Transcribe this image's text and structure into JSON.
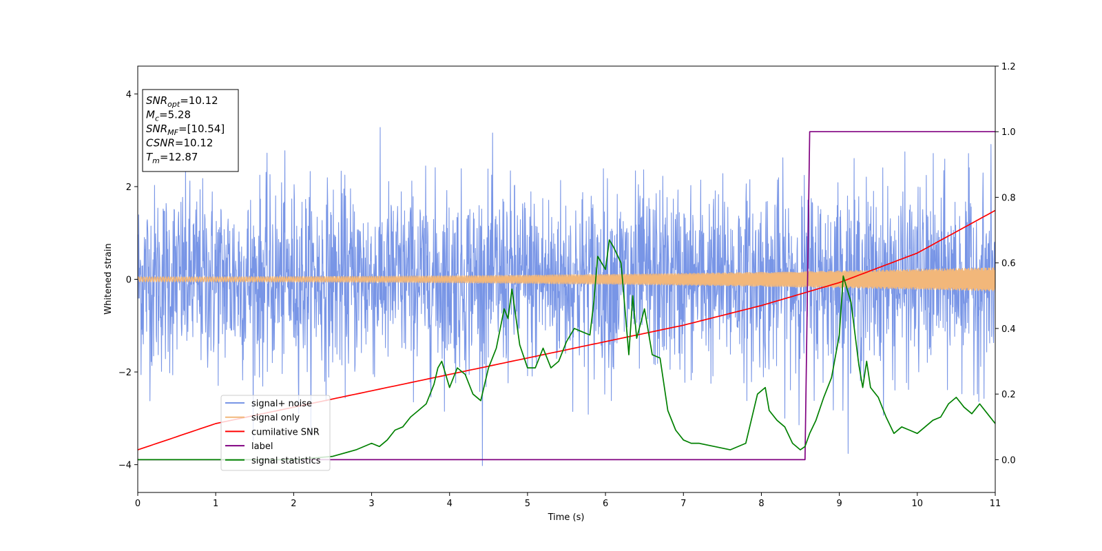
{
  "chart_data": {
    "type": "line",
    "xlabel": "Time (s)",
    "ylabel": "Whitened strain",
    "xlim": [
      0,
      11
    ],
    "ylim": [
      -4.6,
      4.6
    ],
    "y2lim": [
      -0.1,
      1.2
    ],
    "xticks": [
      "0",
      "1",
      "2",
      "3",
      "4",
      "5",
      "6",
      "7",
      "8",
      "9",
      "10",
      "11"
    ],
    "yticks": [
      "4",
      "2",
      "0",
      "−2",
      "−4"
    ],
    "y2ticks": [
      "1.2",
      "1.0",
      "0.8",
      "0.6",
      "0.4",
      "0.2",
      "0.0"
    ],
    "grid": false,
    "legend_position": "lower-left",
    "info_box": {
      "lines": [
        {
          "label": "SNR",
          "sub": "opt",
          "value": "=10.12"
        },
        {
          "label": "M",
          "sub": "c",
          "value": "=5.28"
        },
        {
          "label": "SNR",
          "sub": "MF",
          "value": "=[10.54]"
        },
        {
          "label": "CSNR",
          "sub": "",
          "value": "=10.12"
        },
        {
          "label": "T",
          "sub": "m",
          "value": "=12.87"
        }
      ]
    },
    "series": [
      {
        "name": "signal+ noise",
        "axis": "left",
        "color": "#7895e6",
        "description_kind": "noise",
        "noise_std": 1.0,
        "approx_range": [
          -4.15,
          4.15
        ]
      },
      {
        "name": "signal only",
        "axis": "left",
        "color": "#f2b77a",
        "description_kind": "chirp",
        "amplitude_start": 0.05,
        "amplitude_end": 0.25
      },
      {
        "name": "cumilative SNR",
        "axis": "right",
        "color": "#ff0000",
        "x": [
          0,
          1,
          2,
          3,
          4,
          5,
          6,
          7,
          8,
          9,
          10,
          11
        ],
        "y": [
          0.03,
          0.11,
          0.16,
          0.21,
          0.26,
          0.31,
          0.36,
          0.41,
          0.47,
          0.54,
          0.63,
          0.76
        ]
      },
      {
        "name": "label",
        "axis": "right",
        "color": "#800080",
        "x": [
          0,
          8.56,
          8.62,
          11
        ],
        "y": [
          0,
          0,
          1,
          1
        ]
      },
      {
        "name": "signal statistics",
        "axis": "right",
        "color": "#008000",
        "x": [
          0,
          1,
          2,
          2.5,
          2.8,
          3,
          3.1,
          3.2,
          3.3,
          3.4,
          3.5,
          3.6,
          3.7,
          3.8,
          3.85,
          3.9,
          4.0,
          4.1,
          4.2,
          4.3,
          4.4,
          4.5,
          4.6,
          4.7,
          4.75,
          4.8,
          4.9,
          5.0,
          5.1,
          5.2,
          5.3,
          5.4,
          5.5,
          5.6,
          5.7,
          5.8,
          5.85,
          5.9,
          6.0,
          6.05,
          6.1,
          6.2,
          6.3,
          6.35,
          6.4,
          6.5,
          6.6,
          6.7,
          6.8,
          6.9,
          7.0,
          7.1,
          7.2,
          7.4,
          7.6,
          7.8,
          7.95,
          8.05,
          8.1,
          8.2,
          8.3,
          8.4,
          8.5,
          8.56,
          8.62,
          8.7,
          8.8,
          8.9,
          9.0,
          9.05,
          9.15,
          9.25,
          9.3,
          9.35,
          9.4,
          9.5,
          9.6,
          9.7,
          9.8,
          9.9,
          10.0,
          10.1,
          10.2,
          10.3,
          10.4,
          10.5,
          10.6,
          10.7,
          10.8,
          10.9,
          11.0
        ],
        "y": [
          0.0,
          0.0,
          0.0,
          0.01,
          0.03,
          0.05,
          0.04,
          0.06,
          0.09,
          0.1,
          0.13,
          0.15,
          0.17,
          0.23,
          0.28,
          0.3,
          0.22,
          0.28,
          0.26,
          0.2,
          0.18,
          0.28,
          0.34,
          0.46,
          0.43,
          0.52,
          0.35,
          0.28,
          0.28,
          0.34,
          0.28,
          0.3,
          0.36,
          0.4,
          0.39,
          0.38,
          0.48,
          0.62,
          0.58,
          0.67,
          0.65,
          0.6,
          0.32,
          0.5,
          0.37,
          0.46,
          0.32,
          0.31,
          0.15,
          0.09,
          0.06,
          0.05,
          0.05,
          0.04,
          0.03,
          0.05,
          0.2,
          0.22,
          0.15,
          0.12,
          0.1,
          0.05,
          0.03,
          0.04,
          0.08,
          0.12,
          0.19,
          0.25,
          0.38,
          0.56,
          0.48,
          0.29,
          0.22,
          0.3,
          0.22,
          0.19,
          0.13,
          0.08,
          0.1,
          0.09,
          0.08,
          0.1,
          0.12,
          0.13,
          0.17,
          0.19,
          0.16,
          0.14,
          0.17,
          0.14,
          0.11
        ]
      }
    ]
  }
}
